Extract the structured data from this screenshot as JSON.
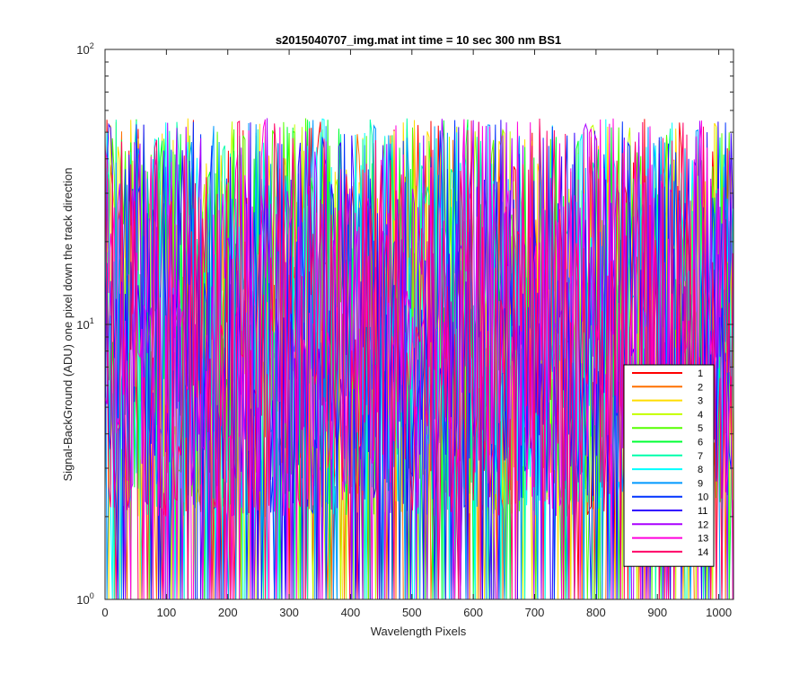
{
  "chart_data": {
    "type": "line",
    "title": "s2015040707_img.mat int time = 10 sec  300 nm BS1",
    "xlabel": "Wavelength Pixels",
    "ylabel": "Signal-BackGround (ADU) one pixel down the track direction",
    "xlim": [
      0,
      1024
    ],
    "ylim": [
      1,
      100
    ],
    "yscale": "log",
    "x_ticks": [
      0,
      100,
      200,
      300,
      400,
      500,
      600,
      700,
      800,
      900,
      1000
    ],
    "y_ticks": [
      {
        "base": "10",
        "exp": "0",
        "value": 1
      },
      {
        "base": "10",
        "exp": "1",
        "value": 10
      },
      {
        "base": "10",
        "exp": "2",
        "value": 100
      }
    ],
    "grid": false,
    "legend_position": "lower-right",
    "series": [
      {
        "name": "1",
        "color": "#ff0000"
      },
      {
        "name": "2",
        "color": "#ff7000"
      },
      {
        "name": "3",
        "color": "#ffdd00"
      },
      {
        "name": "4",
        "color": "#c4ff00"
      },
      {
        "name": "5",
        "color": "#55ff00"
      },
      {
        "name": "6",
        "color": "#00ff33"
      },
      {
        "name": "7",
        "color": "#00ffaa"
      },
      {
        "name": "8",
        "color": "#00ffff"
      },
      {
        "name": "9",
        "color": "#0099ff"
      },
      {
        "name": "10",
        "color": "#0033ff"
      },
      {
        "name": "11",
        "color": "#3300ff"
      },
      {
        "name": "12",
        "color": "#aa00ff"
      },
      {
        "name": "13",
        "color": "#ff00dd"
      },
      {
        "name": "14",
        "color": "#ff0066"
      }
    ],
    "data_note": "noisy per-pixel signal, values approx 2 to 90 ADU"
  }
}
